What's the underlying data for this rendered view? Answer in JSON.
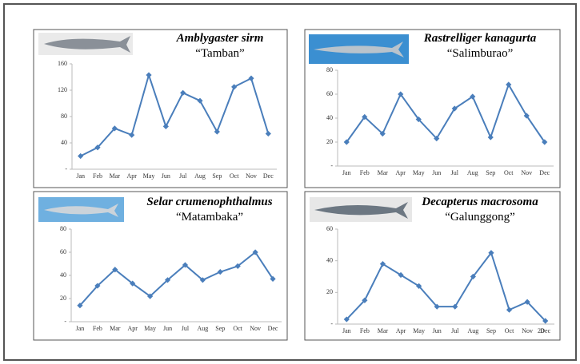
{
  "chart_data": [
    {
      "type": "line",
      "title": "Amblygaster sirm",
      "subtitle": "“Tamban”",
      "categories": [
        "Jan",
        "Feb",
        "Mar",
        "Apr",
        "May",
        "Jun",
        "Jul",
        "Aug",
        "Sep",
        "Oct",
        "Nov",
        "Dec"
      ],
      "values": [
        20,
        33,
        62,
        52,
        143,
        65,
        116,
        104,
        57,
        125,
        138,
        54
      ],
      "color": "#4a7ebb",
      "ylim": [
        0,
        160
      ],
      "yticks": [
        {
          "value": 0,
          "label": "-"
        },
        40,
        80,
        120,
        160
      ]
    },
    {
      "type": "line",
      "title": "Rastrelliger kanagurta",
      "subtitle": "“Salimburao”",
      "categories": [
        "Jan",
        "Feb",
        "Mar",
        "Apr",
        "May",
        "Jun",
        "Jul",
        "Aug",
        "Sep",
        "Oct",
        "Nov",
        "Dec"
      ],
      "values": [
        20,
        41,
        27,
        60,
        39,
        23,
        48,
        58,
        24,
        68,
        42,
        20
      ],
      "color": "#4a7ebb",
      "ylim": [
        0,
        80
      ],
      "yticks": [
        {
          "value": 0,
          "label": "-"
        },
        20,
        40,
        60,
        80
      ]
    },
    {
      "type": "line",
      "title": "Selar crumenophthalmus",
      "subtitle": "“Matambaka”",
      "categories": [
        "Jan",
        "Feb",
        "Mar",
        "Apr",
        "May",
        "Jun",
        "Jul",
        "Aug",
        "Sep",
        "Oct",
        "Nov",
        "Dec"
      ],
      "values": [
        14,
        31,
        45,
        33,
        22,
        36,
        49,
        36,
        43,
        48,
        60,
        37
      ],
      "color": "#4a7ebb",
      "ylim": [
        0,
        80
      ],
      "yticks": [
        {
          "value": 0,
          "label": "-"
        },
        20,
        40,
        60,
        80
      ]
    },
    {
      "type": "line",
      "title": "Decapterus macrosoma",
      "subtitle": "“Galunggong”",
      "categories": [
        "Jan",
        "Feb",
        "Mar",
        "Apr",
        "May",
        "Jun",
        "Jul",
        "Aug",
        "Sep",
        "Oct",
        "Nov",
        "Dec"
      ],
      "values": [
        3,
        15,
        38,
        31,
        24,
        11,
        11,
        30,
        45,
        9,
        14,
        2
      ],
      "color": "#4a7ebb",
      "ylim": [
        0,
        60
      ],
      "yticks": [
        {
          "value": 0,
          "label": "-"
        },
        20,
        40,
        60
      ],
      "annotation": "20"
    }
  ]
}
